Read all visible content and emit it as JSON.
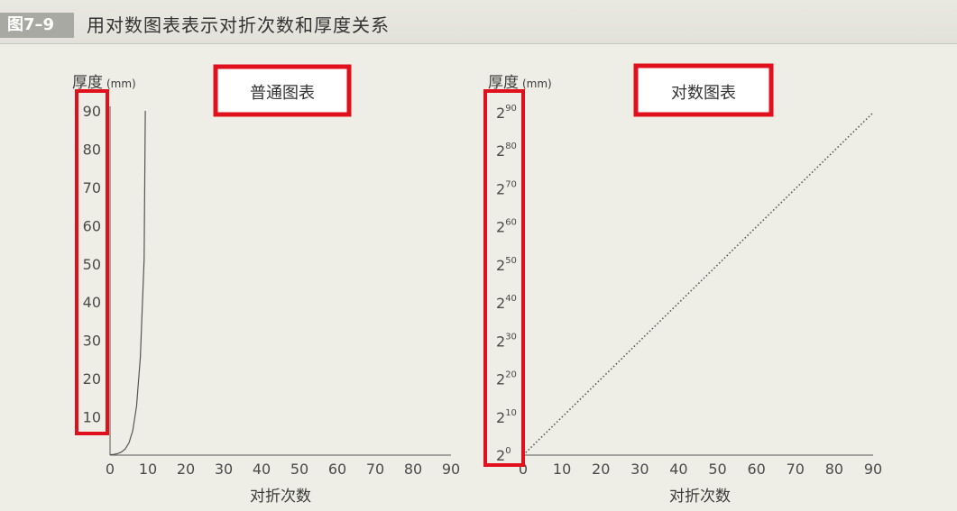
{
  "figure": {
    "number": "图7–9",
    "title": "用对数图表表示对折次数和厚度关系"
  },
  "highlight_color": "#e0101c",
  "chart_data": [
    {
      "type": "line",
      "title": "普通图表",
      "ylabel": "厚度",
      "ylabel_unit": "(mm)",
      "xlabel": "对折次数",
      "xlim": [
        0,
        90
      ],
      "ylim": [
        0,
        90
      ],
      "x_ticks": [
        "0",
        "10",
        "20",
        "30",
        "40",
        "50",
        "60",
        "70",
        "80",
        "90"
      ],
      "y_ticks": [
        "10",
        "20",
        "30",
        "40",
        "50",
        "60",
        "70",
        "80",
        "90"
      ],
      "series": [
        {
          "x": [
            0,
            1,
            2,
            3,
            4,
            5,
            6,
            7,
            8,
            9,
            9.3
          ],
          "y": [
            0.1,
            0.2,
            0.4,
            0.8,
            1.6,
            3.2,
            6.4,
            12.8,
            25.6,
            51.2,
            90
          ]
        }
      ]
    },
    {
      "type": "line",
      "title": "对数图表",
      "ylabel": "厚度",
      "ylabel_unit": "(mm)",
      "xlabel": "对折次数",
      "xlim": [
        0,
        90
      ],
      "yscale": "log2",
      "ylim_exponent": [
        0,
        90
      ],
      "x_ticks": [
        "0",
        "10",
        "20",
        "30",
        "40",
        "50",
        "60",
        "70",
        "80",
        "90"
      ],
      "y_ticks": [
        {
          "base": "2",
          "exp": "0"
        },
        {
          "base": "2",
          "exp": "10"
        },
        {
          "base": "2",
          "exp": "20"
        },
        {
          "base": "2",
          "exp": "30"
        },
        {
          "base": "2",
          "exp": "40"
        },
        {
          "base": "2",
          "exp": "50"
        },
        {
          "base": "2",
          "exp": "60"
        },
        {
          "base": "2",
          "exp": "70"
        },
        {
          "base": "2",
          "exp": "80"
        },
        {
          "base": "2",
          "exp": "90"
        }
      ],
      "series": [
        {
          "line_style": "dotted",
          "x": [
            0,
            90
          ],
          "y_exponent": [
            0,
            90
          ]
        }
      ]
    }
  ]
}
